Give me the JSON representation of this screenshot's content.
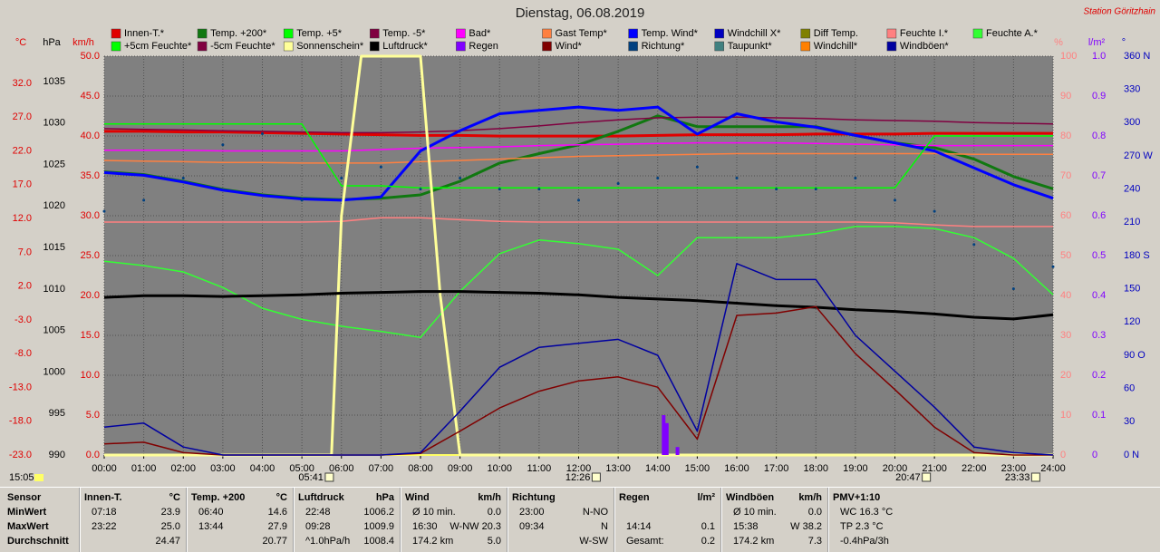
{
  "chart_data": {
    "type": "line",
    "title": "Dienstag, 06.08.2019",
    "station": "Station Göritzhain",
    "time": "15:05",
    "ylabel": "km/h",
    "ycolor": "#e00000",
    "ylim": [
      0,
      50
    ],
    "yticks": [
      {
        "value": 0,
        "label": "0.0"
      },
      {
        "value": 5,
        "label": "5.0"
      },
      {
        "value": 10,
        "label": "10.0"
      },
      {
        "value": 15,
        "label": "15.0"
      },
      {
        "value": 20,
        "label": "20.0"
      },
      {
        "value": 25,
        "label": "25.0"
      },
      {
        "value": 30,
        "label": "30.0"
      },
      {
        "value": 35,
        "label": "35.0"
      },
      {
        "value": 40,
        "label": "40.0"
      },
      {
        "value": 45,
        "label": "45.0"
      },
      {
        "value": 50,
        "label": "50.0"
      }
    ],
    "grid": true,
    "axes": {
      "temp": {
        "label": "°C",
        "color": "#e00000",
        "lim": [
          -23,
          36.02
        ],
        "ticks": [
          {
            "value": 32,
            "label": "32.0"
          },
          {
            "value": 27,
            "label": "27.0"
          },
          {
            "value": 22,
            "label": "22.0"
          },
          {
            "value": 17,
            "label": "17.0"
          },
          {
            "value": 12,
            "label": "12.0"
          },
          {
            "value": 7,
            "label": "7.0"
          },
          {
            "value": 2,
            "label": "2.0"
          },
          {
            "value": -3,
            "label": "-3.0"
          },
          {
            "value": -8,
            "label": "-8.0"
          },
          {
            "value": -13,
            "label": "-13.0"
          },
          {
            "value": -18,
            "label": "-18.0"
          },
          {
            "value": -23,
            "label": "-23.0"
          }
        ]
      },
      "pressure": {
        "label": "hPa",
        "color": "#000000",
        "lim": [
          990,
          1038.06
        ],
        "ticks": [
          1035,
          1030,
          1025,
          1020,
          1015,
          1010,
          1005,
          1000,
          995,
          990
        ]
      },
      "humidity": {
        "label": "%",
        "color": "#ff8080",
        "lim": [
          0,
          100
        ],
        "ticks": [
          100,
          90,
          80,
          70,
          60,
          50,
          40,
          30,
          20,
          10,
          0
        ]
      },
      "rain": {
        "label": "l/m²",
        "color": "#8000ff",
        "lim": [
          0,
          1
        ],
        "ticks": [
          {
            "value": 1,
            "label": "1.0"
          },
          0.9,
          0.8,
          0.7,
          0.6,
          0.5,
          0.4,
          0.3,
          0.2,
          0.1,
          0
        ]
      },
      "direction": {
        "label": "°",
        "color": "#0000c0",
        "lim": [
          0,
          360
        ],
        "ticks": [
          {
            "value": 360,
            "label": "360 N"
          },
          330,
          300,
          {
            "value": 270,
            "label": "270 W"
          },
          240,
          210,
          {
            "value": 180,
            "label": "180 S"
          },
          150,
          120,
          {
            "value": 90,
            "label": "90 O"
          },
          60,
          30,
          {
            "value": 0,
            "label": "0 N"
          }
        ]
      }
    },
    "xlim": [
      0,
      24
    ],
    "xticks": [
      {
        "value": 0,
        "label": "00:00"
      },
      {
        "value": 1,
        "label": "01:00"
      },
      {
        "value": 2,
        "label": "02:00"
      },
      {
        "value": 3,
        "label": "03:00"
      },
      {
        "value": 4,
        "label": "04:00"
      },
      {
        "value": 5,
        "label": "05:00"
      },
      {
        "value": 6,
        "label": "06:00"
      },
      {
        "value": 7,
        "label": "07:00"
      },
      {
        "value": 8,
        "label": "08:00"
      },
      {
        "value": 9,
        "label": "09:00"
      },
      {
        "value": 10,
        "label": "10:00"
      },
      {
        "value": 11,
        "label": "11:00"
      },
      {
        "value": 12,
        "label": "12:00"
      },
      {
        "value": 13,
        "label": "13:00"
      },
      {
        "value": 14,
        "label": "14:00"
      },
      {
        "value": 15,
        "label": "15:00"
      },
      {
        "value": 16,
        "label": "16:00"
      },
      {
        "value": 17,
        "label": "17:00"
      },
      {
        "value": 18,
        "label": "18:00"
      },
      {
        "value": 19,
        "label": "19:00"
      },
      {
        "value": 20,
        "label": "20:00"
      },
      {
        "value": 21,
        "label": "21:00"
      },
      {
        "value": 22,
        "label": "22:00"
      },
      {
        "value": 23,
        "label": "23:00"
      },
      {
        "value": 24,
        "label": "24:00"
      }
    ],
    "x": [
      0,
      1,
      2,
      3,
      4,
      5,
      6,
      7,
      8,
      9,
      10,
      11,
      12,
      13,
      14,
      15,
      16,
      17,
      18,
      19,
      20,
      21,
      22,
      23,
      24
    ],
    "events": [
      {
        "value": 5.683,
        "label": "05:41"
      },
      {
        "value": 12.433,
        "label": "12:26"
      },
      {
        "value": 20.783,
        "label": "20:47"
      },
      {
        "value": 23.55,
        "label": "23:33"
      }
    ],
    "series": [
      {
        "name": "Innen-T.*",
        "color": "#e00000",
        "axis": "temp",
        "style": "thick",
        "values": [
          24.9,
          24.9,
          24.8,
          24.8,
          24.7,
          24.6,
          24.5,
          24.4,
          24.3,
          24.3,
          24.2,
          24.2,
          24.2,
          24.2,
          24.3,
          24.4,
          24.4,
          24.4,
          24.5,
          24.5,
          24.5,
          24.6,
          24.6,
          24.6,
          24.6
        ]
      },
      {
        "name": "Temp. +200*",
        "color": "#107810",
        "axis": "temp",
        "style": "thick",
        "values": [
          18.9,
          18.5,
          17.5,
          16.3,
          15.5,
          15.0,
          14.8,
          15.0,
          15.5,
          17.5,
          20.2,
          21.6,
          22.9,
          24.9,
          27.2,
          25.6,
          25.6,
          25.6,
          25.6,
          24.3,
          23.2,
          22.5,
          20.8,
          18.2,
          16.4
        ]
      },
      {
        "name": "Temp. +5*",
        "color": "#00ff00"
      },
      {
        "name": "Temp. -5*",
        "color": "#800040",
        "axis": "temp",
        "style": "line",
        "values": [
          25.3,
          25.2,
          25.1,
          25.0,
          24.9,
          24.8,
          24.7,
          24.7,
          24.8,
          25.0,
          25.3,
          25.7,
          26.2,
          26.6,
          26.9,
          27.0,
          27.0,
          26.9,
          26.8,
          26.6,
          26.5,
          26.4,
          26.2,
          26.1,
          26.0
        ]
      },
      {
        "name": "Bad*",
        "color": "#ff00ff",
        "axis": "temp",
        "style": "line",
        "values": [
          22.1,
          22.1,
          22.1,
          22.0,
          22.0,
          22.0,
          22.0,
          22.2,
          22.4,
          22.5,
          22.6,
          22.8,
          22.9,
          23.0,
          23.1,
          23.2,
          23.2,
          23.2,
          23.1,
          23.0,
          22.9,
          22.8,
          22.8,
          22.8,
          22.8
        ]
      },
      {
        "name": "Gast Temp*",
        "color": "#ff8040",
        "axis": "temp",
        "style": "line",
        "values": [
          20.6,
          20.5,
          20.4,
          20.3,
          20.3,
          20.2,
          20.2,
          20.2,
          20.4,
          20.6,
          20.8,
          21.0,
          21.2,
          21.3,
          21.4,
          21.5,
          21.6,
          21.6,
          21.6,
          21.6,
          21.6,
          21.6,
          21.5,
          21.5,
          21.5
        ]
      },
      {
        "name": "Temp. Wind*",
        "color": "#0000ff",
        "axis": "temp",
        "style": "thick",
        "values": [
          18.8,
          18.4,
          17.4,
          16.2,
          15.4,
          14.9,
          14.7,
          15.2,
          22.0,
          25.0,
          27.5,
          28.0,
          28.5,
          28.0,
          28.5,
          24.5,
          27.5,
          26.3,
          25.5,
          24.3,
          23.2,
          22.0,
          19.5,
          17.0,
          15.0
        ]
      },
      {
        "name": "Windchill X*",
        "color": "#0000c0"
      },
      {
        "name": "Diff Temp.",
        "color": "#808000"
      },
      {
        "name": "Feuchte I.*",
        "color": "#ff8080",
        "axis": "humidity",
        "style": "line",
        "values": [
          58.4,
          58.4,
          58.4,
          58.4,
          58.4,
          58.4,
          58.6,
          59.5,
          59.5,
          59.0,
          58.6,
          58.4,
          58.4,
          58.4,
          58.4,
          58.4,
          58.4,
          58.4,
          58.4,
          58.4,
          58.2,
          57.7,
          57.3,
          57.3,
          57.3
        ]
      },
      {
        "name": "Feuchte A.*",
        "color": "#33ff33",
        "axis": "humidity",
        "style": "line",
        "values": [
          48.6,
          47.5,
          45.9,
          42.0,
          36.8,
          34.0,
          32.3,
          31.0,
          29.5,
          41.0,
          50.5,
          53.9,
          53.0,
          51.6,
          45.0,
          54.5,
          54.5,
          54.5,
          55.5,
          57.3,
          57.3,
          56.8,
          54.5,
          49.3,
          40.2
        ]
      },
      {
        "name": "+5cm Feuchte*",
        "color": "#00ff00",
        "axis": "humidity",
        "style": "line",
        "values": [
          83,
          83,
          83,
          83,
          83,
          83,
          67.5,
          67.5,
          67,
          67,
          67,
          67,
          67,
          67,
          67,
          67,
          67,
          67,
          67,
          67,
          67,
          80,
          80,
          80,
          80
        ]
      },
      {
        "name": "-5cm Feuchte*",
        "color": "#800040"
      },
      {
        "name": "Sonnenschein*",
        "color": "#ffff99",
        "axis": "humidity",
        "style": "thick",
        "x": [
          0,
          5.75,
          6.0,
          6.5,
          8.0,
          8.5,
          9.0,
          24
        ],
        "values": [
          0,
          0,
          60,
          100,
          100,
          40,
          0,
          0
        ]
      },
      {
        "name": "Luftdruck*",
        "color": "#000000",
        "axis": "pressure",
        "style": "thick",
        "values": [
          1009.0,
          1009.2,
          1009.2,
          1009.1,
          1009.2,
          1009.3,
          1009.5,
          1009.6,
          1009.7,
          1009.7,
          1009.6,
          1009.5,
          1009.3,
          1009.0,
          1008.8,
          1008.6,
          1008.3,
          1008.0,
          1007.8,
          1007.5,
          1007.3,
          1007.0,
          1006.6,
          1006.4,
          1006.9
        ]
      },
      {
        "name": "Regen",
        "color": "#8000ff",
        "axis": "rain",
        "style": "bars",
        "x": [
          14.15,
          14.23,
          14.5
        ],
        "values": [
          0.1,
          0.08,
          0.02
        ]
      },
      {
        "name": "Wind*",
        "color": "#800000",
        "style": "line",
        "values": [
          1.4,
          1.6,
          0.3,
          0,
          0,
          0,
          0,
          0,
          0.2,
          3.0,
          5.9,
          8.0,
          9.3,
          9.8,
          8.5,
          2.0,
          17.5,
          17.8,
          18.6,
          12.7,
          8.2,
          3.5,
          0.3,
          0,
          0
        ]
      },
      {
        "name": "Richtung*",
        "color": "#004080",
        "axis": "direction",
        "style": "dots",
        "values": [
          220,
          230,
          250,
          280,
          290,
          230,
          250,
          260,
          240,
          250,
          240,
          240,
          230,
          245,
          250,
          260,
          250,
          240,
          240,
          250,
          230,
          220,
          190,
          150,
          170
        ]
      },
      {
        "name": "Taupunkt*",
        "color": "#408080"
      },
      {
        "name": "Windchill*",
        "color": "#ff8000"
      },
      {
        "name": "Windböen*",
        "color": "#0000a0",
        "style": "line",
        "values": [
          3.5,
          4.0,
          1.0,
          0,
          0,
          0,
          0,
          0,
          0.3,
          5.5,
          11.0,
          13.5,
          14.0,
          14.5,
          12.5,
          3.0,
          24.0,
          22.0,
          22.0,
          15.0,
          10.5,
          6.0,
          1.0,
          0.3,
          0
        ]
      }
    ]
  },
  "table": {
    "sensor_column": [
      "Sensor",
      "MinWert",
      "MaxWert",
      "Durchschnitt"
    ],
    "columns": [
      {
        "title": "Innen-T.",
        "unit": "°C",
        "rows": [
          [
            "07:18",
            "23.9"
          ],
          [
            "23:22",
            "25.0"
          ],
          [
            null,
            "24.47"
          ]
        ]
      },
      {
        "title": "Temp. +200",
        "unit": "°C",
        "rows": [
          [
            "06:40",
            "14.6"
          ],
          [
            "13:44",
            "27.9"
          ],
          [
            null,
            "20.77"
          ]
        ]
      },
      {
        "title": "Luftdruck",
        "unit": "hPa",
        "rows": [
          [
            "22:48",
            "1006.2"
          ],
          [
            "09:28",
            "1009.9"
          ],
          [
            "^1.0hPa/h",
            "1008.4"
          ]
        ]
      },
      {
        "title": "Wind",
        "unit": "km/h",
        "rows": [
          [
            "Ø 10 min.",
            "0.0"
          ],
          [
            "16:30",
            "W-NW 20.3"
          ],
          [
            "174.2 km",
            "5.0"
          ]
        ]
      },
      {
        "title": "Richtung",
        "rows": [
          [
            "23:00",
            "N-NO"
          ],
          [
            "09:34",
            "N"
          ],
          [
            null,
            "W-SW"
          ]
        ]
      },
      {
        "title": "Regen",
        "unit": "l/m²",
        "rows": [
          [
            null,
            null
          ],
          [
            "14:14",
            "0.1"
          ],
          [
            "Gesamt:",
            "0.2"
          ]
        ]
      },
      {
        "title": "Windböen",
        "unit": "km/h",
        "rows": [
          [
            "Ø 10 min.",
            "0.0"
          ],
          [
            "15:38",
            "W 38.2"
          ],
          [
            "174.2 km",
            "7.3"
          ]
        ]
      },
      {
        "title": "PMV+1:10",
        "rows": [
          [
            "WC 16.3 °C",
            null
          ],
          [
            "TP 2.3 °C",
            null
          ],
          [
            "-0.4hPa/3h",
            null
          ]
        ]
      }
    ]
  }
}
